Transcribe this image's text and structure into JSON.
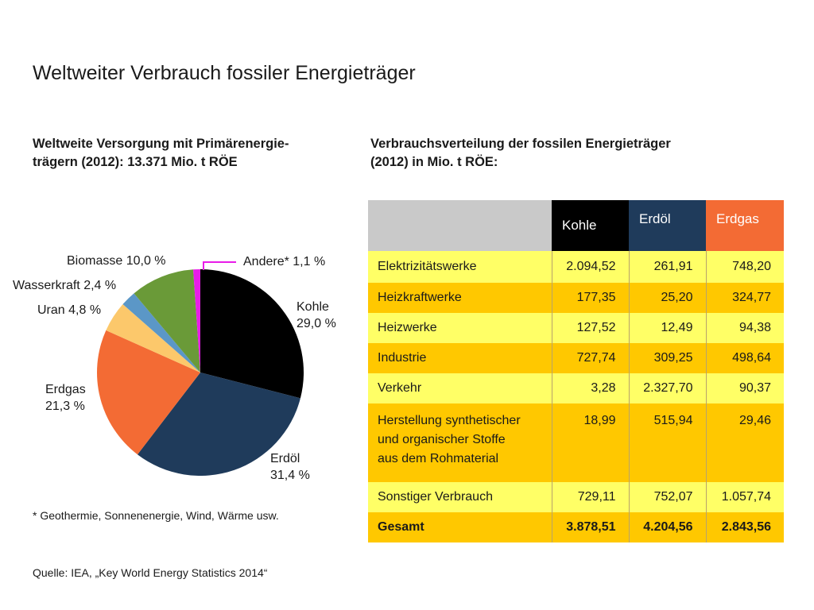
{
  "title": "Weltweiter Verbrauch fossiler Energieträger",
  "pie_heading": "Weltweite Versorgung mit Primärenergie-trägern (2012): 13.371 Mio. t RÖE",
  "pie_heading_line1": "Weltweite Versorgung mit Primärenergie-",
  "pie_heading_line2": "trägern (2012): 13.371 Mio. t RÖE",
  "table_heading_line1": "Verbrauchsverteilung der fossilen Energieträger",
  "table_heading_line2": "(2012) in Mio. t RÖE:",
  "footnote": "* Geothermie, Sonnenenergie, Wind, Wärme usw.",
  "source": "Quelle: IEA, „Key World Energy Statistics 2014“",
  "chart_data": [
    {
      "type": "pie",
      "title": "Weltweite Versorgung mit Primärenergieträgern (2012): 13.371 Mio. t RÖE",
      "unit": "%",
      "slices": [
        {
          "label": "Kohle",
          "value": 29.0,
          "value_label": "29,0 %",
          "color": "#000000"
        },
        {
          "label": "Erdöl",
          "value": 31.4,
          "value_label": "31,4 %",
          "color": "#1f3b5b"
        },
        {
          "label": "Erdgas",
          "value": 21.3,
          "value_label": "21,3 %",
          "color": "#f36b34"
        },
        {
          "label": "Uran",
          "value": 4.8,
          "value_label": "4,8 %",
          "color": "#fcc86b"
        },
        {
          "label": "Wasserkraft",
          "value": 2.4,
          "value_label": "2,4 %",
          "color": "#5b97c7"
        },
        {
          "label": "Biomasse",
          "value": 10.0,
          "value_label": "10,0 %",
          "color": "#6a9a38"
        },
        {
          "label": "Andere*",
          "value": 1.1,
          "value_label": "1,1 %",
          "color": "#e81ce8"
        }
      ]
    },
    {
      "type": "table",
      "title": "Verbrauchsverteilung der fossilen Energieträger (2012) in Mio. t RÖE:",
      "columns": [
        "Kohle",
        "Erdöl",
        "Erdgas"
      ],
      "column_colors": [
        "#000000",
        "#1f3b5b",
        "#f36b34"
      ],
      "rows": [
        {
          "label": "Elektrizitätswerke",
          "values": [
            "2.094,52",
            "261,91",
            "748,20"
          ]
        },
        {
          "label": "Heizkraftwerke",
          "values": [
            "177,35",
            "25,20",
            "324,77"
          ]
        },
        {
          "label": "Heizwerke",
          "values": [
            "127,52",
            "12,49",
            "94,38"
          ]
        },
        {
          "label": "Industrie",
          "values": [
            "727,74",
            "309,25",
            "498,64"
          ]
        },
        {
          "label": "Verkehr",
          "values": [
            "3,28",
            "2.327,70",
            "90,37"
          ]
        },
        {
          "label": "Herstellung synthetischer und organischer Stoffe aus dem Rohmaterial",
          "label_lines": [
            "Herstellung synthetischer",
            "und organischer Stoffe",
            "aus dem Rohmaterial"
          ],
          "values": [
            "18,99",
            "515,94",
            "29,46"
          ]
        },
        {
          "label": "Sonstiger Verbrauch",
          "values": [
            "729,11",
            "752,07",
            "1.057,74"
          ]
        }
      ],
      "total": {
        "label": "Gesamt",
        "values": [
          "3.878,51",
          "4.204,56",
          "2.843,56"
        ]
      }
    }
  ]
}
